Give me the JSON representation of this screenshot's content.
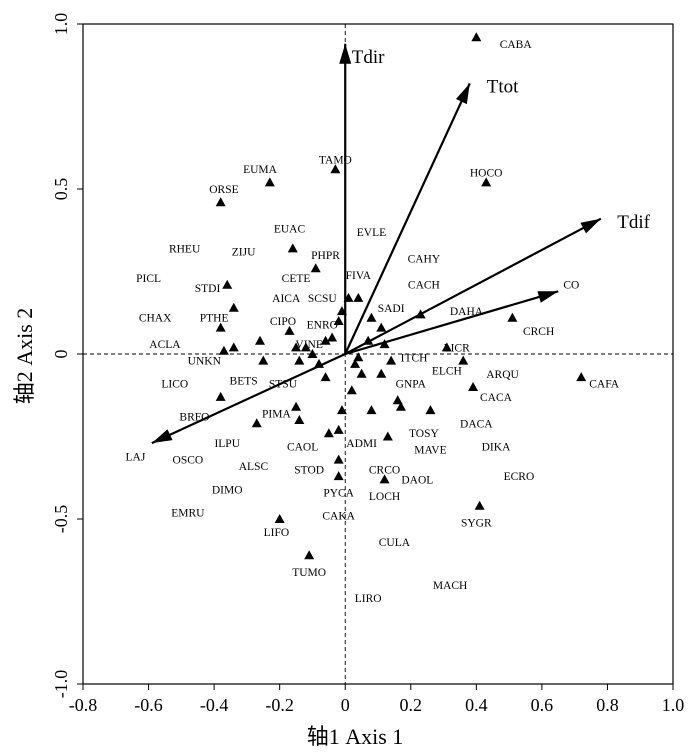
{
  "chart_data": {
    "type": "scatter",
    "title": "",
    "xlabel": "轴1 Axis 1",
    "ylabel": "轴2 Axis 2",
    "xlim": [
      -0.8,
      1.0
    ],
    "ylim": [
      -1.0,
      1.0
    ],
    "xticks": [
      "-0.8",
      "-0.6",
      "-0.4",
      "-0.2",
      "0",
      "0.2",
      "0.4",
      "0.6",
      "0.8",
      "1.0"
    ],
    "yticks": [
      "1.0",
      "0.5",
      "0",
      "-0.5",
      "-1.0"
    ],
    "grid": false,
    "reference_lines": "dashed lines at x=0 and y=0",
    "points": [
      {
        "x": 0.4,
        "y": 0.96
      },
      {
        "x": -0.23,
        "y": 0.52
      },
      {
        "x": -0.03,
        "y": 0.56
      },
      {
        "x": 0.43,
        "y": 0.52
      },
      {
        "x": -0.38,
        "y": 0.46
      },
      {
        "x": -0.16,
        "y": 0.32
      },
      {
        "x": -0.09,
        "y": 0.26
      },
      {
        "x": -0.36,
        "y": 0.21
      },
      {
        "x": -0.34,
        "y": 0.14
      },
      {
        "x": -0.38,
        "y": 0.08
      },
      {
        "x": -0.26,
        "y": 0.04
      },
      {
        "x": -0.37,
        "y": 0.01
      },
      {
        "x": -0.34,
        "y": 0.02
      },
      {
        "x": -0.25,
        "y": -0.02
      },
      {
        "x": -0.15,
        "y": 0.02
      },
      {
        "x": -0.1,
        "y": 0.0
      },
      {
        "x": -0.06,
        "y": 0.04
      },
      {
        "x": -0.04,
        "y": 0.05
      },
      {
        "x": -0.14,
        "y": -0.02
      },
      {
        "x": -0.17,
        "y": 0.07
      },
      {
        "x": -0.12,
        "y": 0.02
      },
      {
        "x": -0.08,
        "y": -0.03
      },
      {
        "x": -0.06,
        "y": -0.07
      },
      {
        "x": -0.02,
        "y": 0.1
      },
      {
        "x": -0.01,
        "y": 0.13
      },
      {
        "x": 0.01,
        "y": 0.17
      },
      {
        "x": 0.04,
        "y": 0.17
      },
      {
        "x": 0.08,
        "y": 0.11
      },
      {
        "x": 0.11,
        "y": 0.08
      },
      {
        "x": 0.07,
        "y": 0.04
      },
      {
        "x": 0.04,
        "y": -0.01
      },
      {
        "x": 0.03,
        "y": -0.03
      },
      {
        "x": 0.05,
        "y": -0.06
      },
      {
        "x": 0.02,
        "y": -0.11
      },
      {
        "x": 0.12,
        "y": 0.03
      },
      {
        "x": 0.14,
        "y": -0.02
      },
      {
        "x": 0.11,
        "y": -0.06
      },
      {
        "x": 0.23,
        "y": 0.12
      },
      {
        "x": 0.31,
        "y": 0.02
      },
      {
        "x": 0.36,
        "y": -0.02
      },
      {
        "x": 0.39,
        "y": -0.1
      },
      {
        "x": 0.51,
        "y": 0.11
      },
      {
        "x": 0.72,
        "y": -0.07
      },
      {
        "x": 0.16,
        "y": -0.14
      },
      {
        "x": 0.17,
        "y": -0.16
      },
      {
        "x": 0.26,
        "y": -0.17
      },
      {
        "x": 0.08,
        "y": -0.17
      },
      {
        "x": -0.01,
        "y": -0.17
      },
      {
        "x": -0.15,
        "y": -0.16
      },
      {
        "x": -0.14,
        "y": -0.2
      },
      {
        "x": -0.27,
        "y": -0.21
      },
      {
        "x": -0.38,
        "y": -0.13
      },
      {
        "x": -0.05,
        "y": -0.24
      },
      {
        "x": -0.02,
        "y": -0.23
      },
      {
        "x": 0.13,
        "y": -0.25
      },
      {
        "x": -0.02,
        "y": -0.32
      },
      {
        "x": -0.02,
        "y": -0.37
      },
      {
        "x": 0.12,
        "y": -0.38
      },
      {
        "x": 0.41,
        "y": -0.46
      },
      {
        "x": -0.2,
        "y": -0.5
      },
      {
        "x": -0.11,
        "y": -0.61
      }
    ],
    "labels": [
      {
        "text": "CABA",
        "x": 0.52,
        "y": 0.94
      },
      {
        "text": "EUMA",
        "x": -0.26,
        "y": 0.56
      },
      {
        "text": "TAMO",
        "x": -0.03,
        "y": 0.59
      },
      {
        "text": "HOCO",
        "x": 0.43,
        "y": 0.55
      },
      {
        "text": "ORSE",
        "x": -0.37,
        "y": 0.5
      },
      {
        "text": "EUAC",
        "x": -0.17,
        "y": 0.38
      },
      {
        "text": "EVLE",
        "x": 0.08,
        "y": 0.37
      },
      {
        "text": "RHEU",
        "x": -0.49,
        "y": 0.32
      },
      {
        "text": "ZIJU",
        "x": -0.31,
        "y": 0.31
      },
      {
        "text": "PHPR",
        "x": -0.06,
        "y": 0.3
      },
      {
        "text": "CAHY",
        "x": 0.24,
        "y": 0.29
      },
      {
        "text": "PICL",
        "x": -0.6,
        "y": 0.23
      },
      {
        "text": "STDI",
        "x": -0.42,
        "y": 0.2
      },
      {
        "text": "CETE",
        "x": -0.15,
        "y": 0.23
      },
      {
        "text": "FIVA",
        "x": 0.04,
        "y": 0.24
      },
      {
        "text": "CACH",
        "x": 0.24,
        "y": 0.21
      },
      {
        "text": "AICA",
        "x": -0.18,
        "y": 0.17
      },
      {
        "text": "SCSU",
        "x": -0.07,
        "y": 0.17
      },
      {
        "text": "SADI",
        "x": 0.14,
        "y": 0.14
      },
      {
        "text": "CO",
        "x": 0.69,
        "y": 0.21
      },
      {
        "text": "DAHA",
        "x": 0.37,
        "y": 0.13
      },
      {
        "text": "CHAX",
        "x": -0.58,
        "y": 0.11
      },
      {
        "text": "PTHE",
        "x": -0.4,
        "y": 0.11
      },
      {
        "text": "CIPO",
        "x": -0.19,
        "y": 0.1
      },
      {
        "text": "ENRO",
        "x": -0.07,
        "y": 0.09
      },
      {
        "text": "CRCH",
        "x": 0.59,
        "y": 0.07
      },
      {
        "text": "ACLA",
        "x": -0.55,
        "y": 0.03
      },
      {
        "text": "VINE",
        "x": -0.11,
        "y": 0.03
      },
      {
        "text": "LICR",
        "x": 0.34,
        "y": 0.02
      },
      {
        "text": "UNKN",
        "x": -0.43,
        "y": -0.02
      },
      {
        "text": "ITCH",
        "x": 0.21,
        "y": -0.01
      },
      {
        "text": "ARQU",
        "x": 0.48,
        "y": -0.06
      },
      {
        "text": "ELCH",
        "x": 0.31,
        "y": -0.05
      },
      {
        "text": "BETS",
        "x": -0.31,
        "y": -0.08
      },
      {
        "text": "CAFA",
        "x": 0.79,
        "y": -0.09
      },
      {
        "text": "LICO",
        "x": -0.52,
        "y": -0.09
      },
      {
        "text": "STSU",
        "x": -0.19,
        "y": -0.09
      },
      {
        "text": "GNPA",
        "x": 0.2,
        "y": -0.09
      },
      {
        "text": "CACA",
        "x": 0.46,
        "y": -0.13
      },
      {
        "text": "BRFO",
        "x": -0.46,
        "y": -0.19
      },
      {
        "text": "PIMA",
        "x": -0.21,
        "y": -0.18
      },
      {
        "text": "DACA",
        "x": 0.4,
        "y": -0.21
      },
      {
        "text": "TOSY",
        "x": 0.24,
        "y": -0.24
      },
      {
        "text": "DIKA",
        "x": 0.46,
        "y": -0.28
      },
      {
        "text": "ILPU",
        "x": -0.36,
        "y": -0.27
      },
      {
        "text": "CAOL",
        "x": -0.13,
        "y": -0.28
      },
      {
        "text": "ADMI",
        "x": 0.05,
        "y": -0.27
      },
      {
        "text": "MAVE",
        "x": 0.26,
        "y": -0.29
      },
      {
        "text": "LAJ",
        "x": -0.64,
        "y": -0.31
      },
      {
        "text": "OSCO",
        "x": -0.48,
        "y": -0.32
      },
      {
        "text": "ALSC",
        "x": -0.28,
        "y": -0.34
      },
      {
        "text": "STOD",
        "x": -0.11,
        "y": -0.35
      },
      {
        "text": "CRCO",
        "x": 0.12,
        "y": -0.35
      },
      {
        "text": "ECRO",
        "x": 0.53,
        "y": -0.37
      },
      {
        "text": "DAOL",
        "x": 0.22,
        "y": -0.38
      },
      {
        "text": "DIMO",
        "x": -0.36,
        "y": -0.41
      },
      {
        "text": "PYCA",
        "x": -0.02,
        "y": -0.42
      },
      {
        "text": "LOCH",
        "x": 0.12,
        "y": -0.43
      },
      {
        "text": "EMRU",
        "x": -0.48,
        "y": -0.48
      },
      {
        "text": "CAKA",
        "x": -0.02,
        "y": -0.49
      },
      {
        "text": "SYGR",
        "x": 0.4,
        "y": -0.51
      },
      {
        "text": "LIFO",
        "x": -0.21,
        "y": -0.54
      },
      {
        "text": "CULA",
        "x": 0.15,
        "y": -0.57
      },
      {
        "text": "TUMO",
        "x": -0.11,
        "y": -0.66
      },
      {
        "text": "MACH",
        "x": 0.32,
        "y": -0.7
      },
      {
        "text": "LIRO",
        "x": 0.07,
        "y": -0.74
      }
    ],
    "vectors": [
      {
        "name": "Tdir",
        "x": 0.0,
        "y": 0.94,
        "label_x": 0.07,
        "label_y": 0.9
      },
      {
        "name": "Ttot",
        "x": 0.38,
        "y": 0.82,
        "label_x": 0.48,
        "label_y": 0.81
      },
      {
        "name": "Tdif",
        "x": 0.78,
        "y": 0.41,
        "label_x": 0.88,
        "label_y": 0.4
      },
      {
        "name": "CO",
        "x": 0.65,
        "y": 0.19,
        "label_x": null,
        "label_y": null
      },
      {
        "name": "LAJ",
        "x": -0.59,
        "y": -0.27,
        "label_x": null,
        "label_y": null
      }
    ]
  }
}
